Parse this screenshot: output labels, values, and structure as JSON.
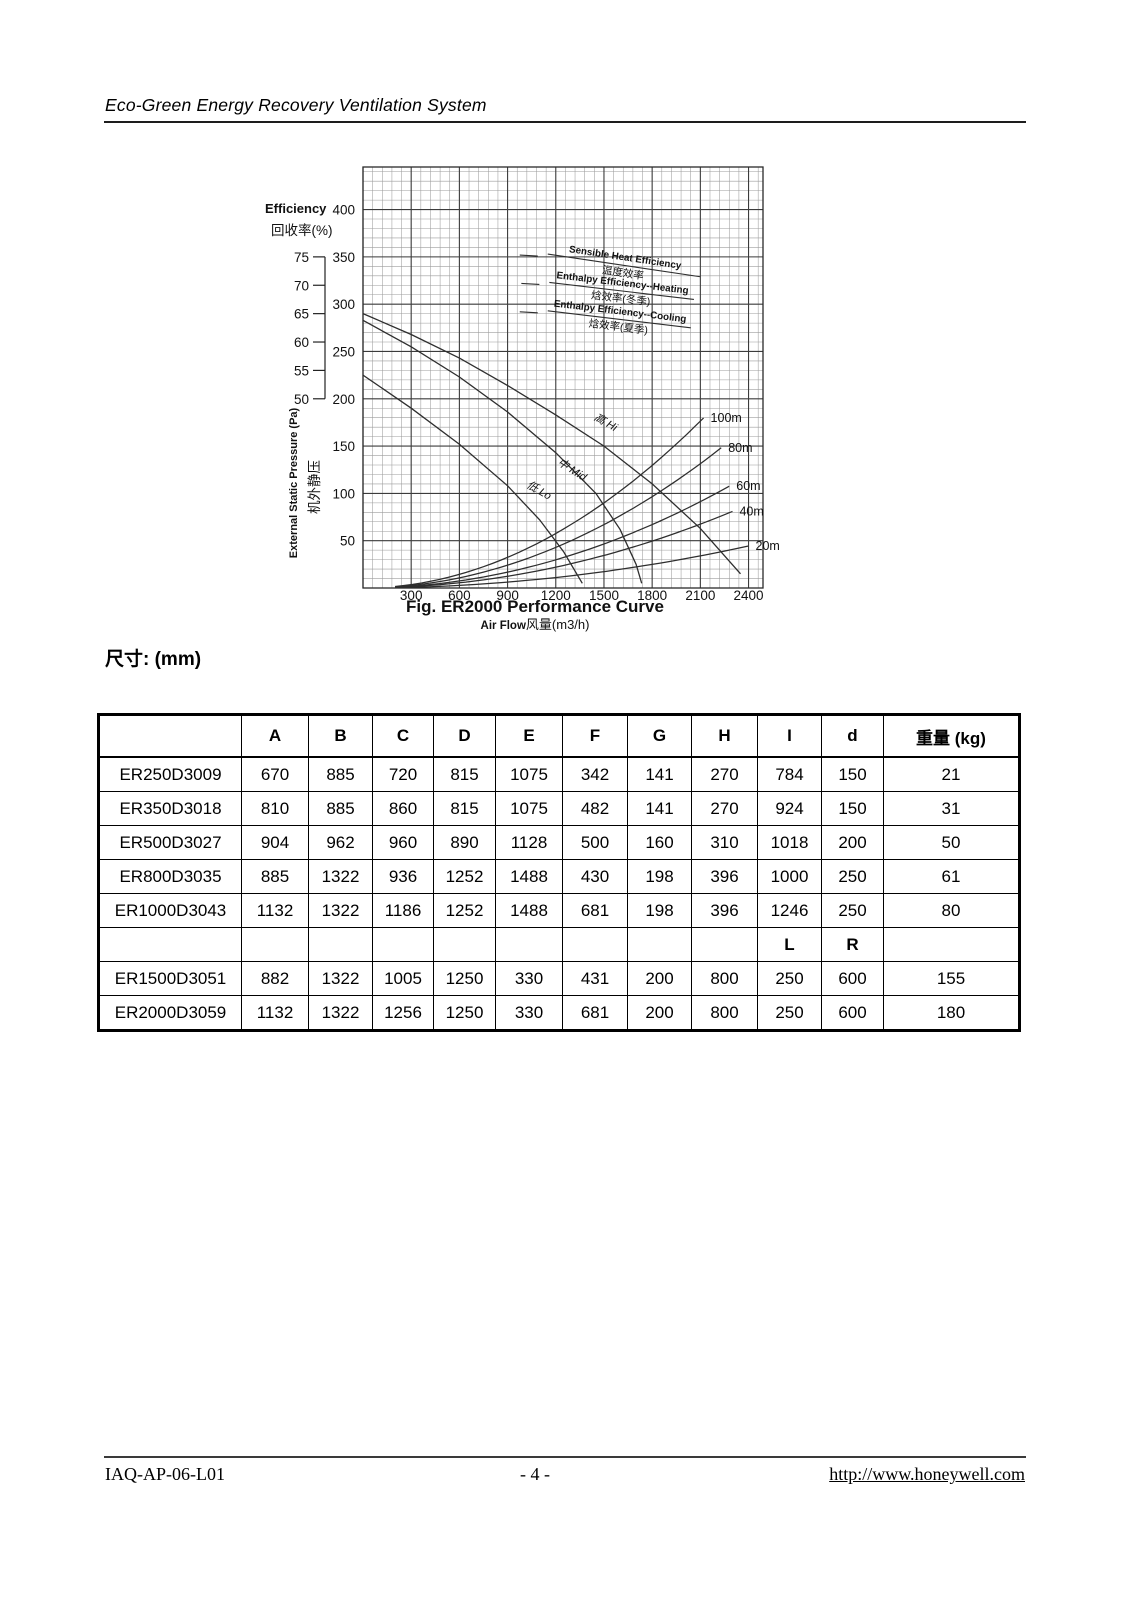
{
  "header": {
    "title": "Eco-Green Energy Recovery Ventilation System"
  },
  "dimensions": {
    "label_cn": "尺寸:",
    "unit": "(mm)"
  },
  "chart_data": {
    "type": "line",
    "title": "Fig. ER2000 Performance Curve",
    "xlabel": "Air Flow",
    "xlabel_cn": "风量(m3/h)",
    "ylabel": "External Static Pressure (Pa)",
    "ylabel_cn": "机外静压",
    "y2label": "Efficiency",
    "y2label_cn": "回收率(%)",
    "xlim": [
      0,
      2490
    ],
    "ylim": [
      0,
      445
    ],
    "x_ticks": [
      300,
      600,
      900,
      1200,
      1500,
      1800,
      2100,
      2400
    ],
    "y_ticks": [
      50,
      100,
      150,
      200,
      250,
      300,
      350,
      400
    ],
    "grid": "fine 60 m3/h x 10 Pa, major 300 m3/h x 50 Pa",
    "efficiency_axis": {
      "ticks": [
        75,
        70,
        65,
        60,
        55,
        50
      ],
      "pa_at_75": 350,
      "pa_at_50": 200
    },
    "fan_curves": [
      {
        "name": "高 Hi",
        "flow": [
          0,
          300,
          600,
          900,
          1200,
          1500,
          1800,
          2100,
          2350
        ],
        "pa": [
          290,
          268,
          243,
          214,
          183,
          150,
          110,
          63,
          15
        ],
        "label_at": [
          1500,
          172
        ],
        "label_rot": 30
      },
      {
        "name": "中 Mid",
        "flow": [
          0,
          300,
          600,
          900,
          1200,
          1450,
          1600,
          1700,
          1735
        ],
        "pa": [
          283,
          255,
          223,
          186,
          143,
          100,
          62,
          25,
          5
        ],
        "label_at": [
          1290,
          122
        ],
        "label_rot": 33
      },
      {
        "name": "低 Lo",
        "flow": [
          0,
          300,
          600,
          900,
          1100,
          1250,
          1365
        ],
        "pa": [
          225,
          190,
          152,
          108,
          72,
          38,
          5
        ],
        "label_at": [
          1085,
          100
        ],
        "label_rot": 30
      }
    ],
    "duct_curves": [
      {
        "name": "20m",
        "k": 7.7e-06,
        "flow_end": 2400
      },
      {
        "name": "40m",
        "k": 1.53e-05,
        "flow_end": 2300
      },
      {
        "name": "60m",
        "k": 2.07e-05,
        "flow_end": 2280
      },
      {
        "name": "80m",
        "k": 2.98e-05,
        "flow_end": 2230
      },
      {
        "name": "100m",
        "k": 4e-05,
        "flow_end": 2120
      }
    ],
    "efficiency_curves": [
      {
        "name": "Sensible Heat Efficiency",
        "name_cn": "温度效率",
        "flow": [
          1150,
          2100
        ],
        "efficiency": [
          75.5,
          71.5
        ]
      },
      {
        "name": "Enthalpy Efficiency--Heating",
        "name_cn": "焓效率(冬季)",
        "flow": [
          1160,
          2060
        ],
        "efficiency": [
          70.5,
          67.5
        ]
      },
      {
        "name": "Enthalpy Efficiency--Cooling",
        "name_cn": "焓效率(夏季)",
        "flow": [
          1150,
          2040
        ],
        "efficiency": [
          65.5,
          62.5
        ]
      }
    ]
  },
  "table": {
    "columns": [
      "",
      "A",
      "B",
      "C",
      "D",
      "E",
      "F",
      "G",
      "H",
      "I",
      "d",
      "重量 (kg)"
    ],
    "rows": [
      {
        "model": "ER250D3009",
        "values": [
          "670",
          "885",
          "720",
          "815",
          "1075",
          "342",
          "141",
          "270",
          "784",
          "150",
          "21"
        ]
      },
      {
        "model": "ER350D3018",
        "values": [
          "810",
          "885",
          "860",
          "815",
          "1075",
          "482",
          "141",
          "270",
          "924",
          "150",
          "31"
        ]
      },
      {
        "model": "ER500D3027",
        "values": [
          "904",
          "962",
          "960",
          "890",
          "1128",
          "500",
          "160",
          "310",
          "1018",
          "200",
          "50"
        ]
      },
      {
        "model": "ER800D3035",
        "values": [
          "885",
          "1322",
          "936",
          "1252",
          "1488",
          "430",
          "198",
          "396",
          "1000",
          "250",
          "61"
        ]
      },
      {
        "model": "ER1000D3043",
        "values": [
          "1132",
          "1322",
          "1186",
          "1252",
          "1488",
          "681",
          "198",
          "396",
          "1246",
          "250",
          "80"
        ]
      },
      {
        "model": "",
        "values": [
          "",
          "",
          "",
          "",
          "",
          "",
          "",
          "",
          "L",
          "R",
          ""
        ]
      },
      {
        "model": "ER1500D3051",
        "values": [
          "882",
          "1322",
          "1005",
          "1250",
          "330",
          "431",
          "200",
          "800",
          "250",
          "600",
          "155"
        ]
      },
      {
        "model": "ER2000D3059",
        "values": [
          "1132",
          "1322",
          "1256",
          "1250",
          "330",
          "681",
          "200",
          "800",
          "250",
          "600",
          "180"
        ]
      }
    ]
  },
  "footer": {
    "doc_id": "IAQ-AP-06-L01",
    "page_number": "- 4 -",
    "url": "http://www.honeywell.com"
  }
}
